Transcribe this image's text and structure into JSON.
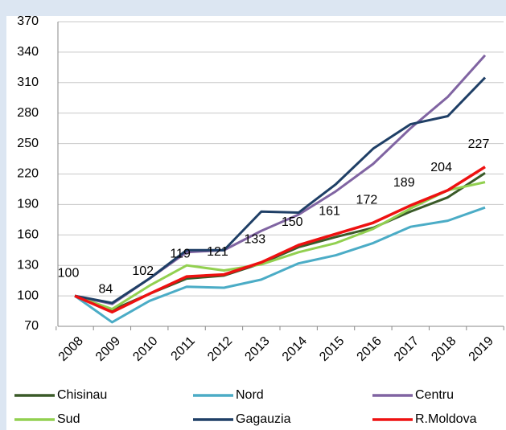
{
  "chart_data": {
    "type": "line",
    "categories": [
      "2008",
      "2009",
      "2010",
      "2011",
      "2012",
      "2013",
      "2014",
      "2015",
      "2016",
      "2017",
      "2018",
      "2019"
    ],
    "series": [
      {
        "name": "Chisinau",
        "color": "#3a5a28",
        "values": [
          100,
          86,
          102,
          117,
          120,
          132,
          148,
          158,
          167,
          183,
          197,
          221
        ]
      },
      {
        "name": "Nord",
        "color": "#4bacc6",
        "values": [
          100,
          74,
          95,
          109,
          108,
          116,
          132,
          140,
          152,
          168,
          174,
          187
        ]
      },
      {
        "name": "Centru",
        "color": "#8064a2",
        "values": [
          100,
          92,
          117,
          143,
          145,
          164,
          180,
          203,
          230,
          265,
          296,
          337
        ]
      },
      {
        "name": "Sud",
        "color": "#92d050",
        "values": [
          100,
          87,
          110,
          130,
          125,
          131,
          143,
          152,
          166,
          186,
          204,
          212
        ]
      },
      {
        "name": "Gagauzia",
        "color": "#1f3f66",
        "values": [
          100,
          93,
          117,
          145,
          145,
          183,
          182,
          210,
          245,
          269,
          277,
          315
        ]
      },
      {
        "name": "R.Moldova",
        "color": "#ee1111",
        "values": [
          100,
          84,
          102,
          119,
          121,
          133,
          150,
          161,
          172,
          189,
          204,
          227
        ],
        "data_labels": true
      }
    ],
    "ylim": [
      70,
      370
    ],
    "yticks": [
      70,
      100,
      130,
      160,
      190,
      220,
      250,
      280,
      310,
      340,
      370
    ],
    "grid": true,
    "legend": "bottom"
  }
}
